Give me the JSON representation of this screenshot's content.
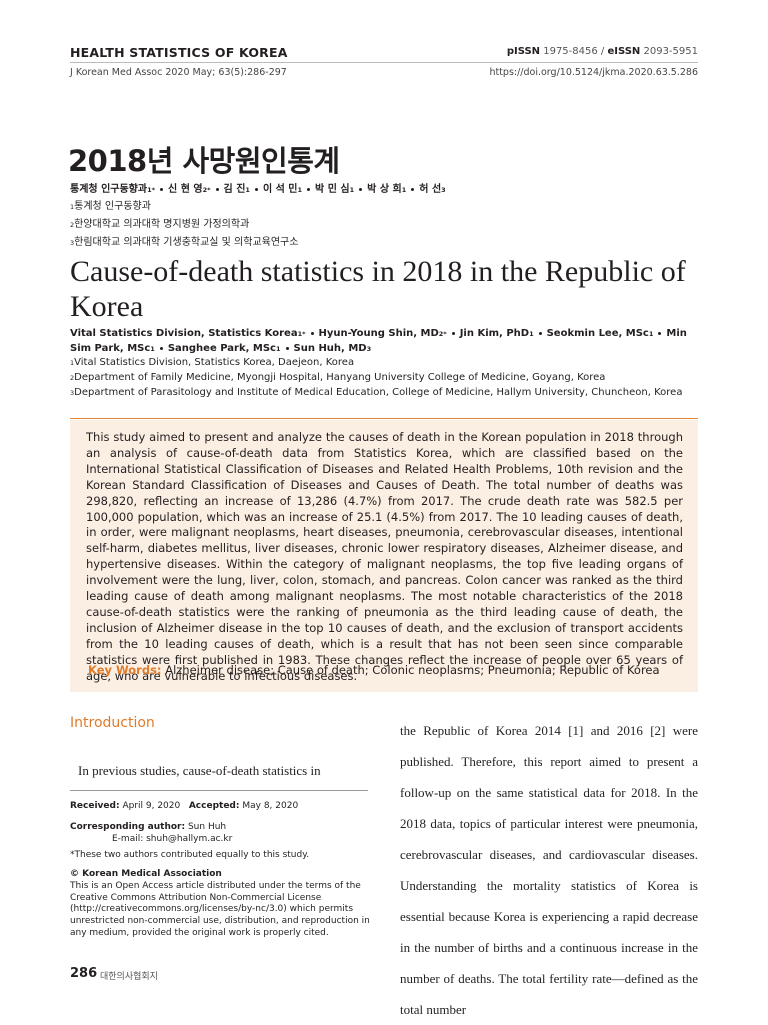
{
  "header": {
    "journal": "HEALTH STATISTICS OF KOREA",
    "citation": "J Korean Med Assoc 2020 May; 63(5):286-297",
    "pissn_label": "pISSN",
    "pissn": "1975-8456 /",
    "eissn_label": "eISSN",
    "eissn": "2093-5951",
    "doi": "https://doi.org/10.5124/jkma.2020.63.5.286"
  },
  "korean_title": "2018년 사망원인통계",
  "korean_authors": [
    {
      "name": "통계청 인구동향과",
      "sup": "1*"
    },
    {
      "name": "신 현 영",
      "sup": "2*"
    },
    {
      "name": "김 진",
      "sup": "1"
    },
    {
      "name": "이 석 민",
      "sup": "1"
    },
    {
      "name": "박 민 심",
      "sup": "1"
    },
    {
      "name": "박 상 희",
      "sup": "1"
    },
    {
      "name": "허 선",
      "sup": "3"
    }
  ],
  "korean_affiliations": [
    {
      "sup": "1",
      "text": "통계청 인구동향과"
    },
    {
      "sup": "2",
      "text": "한양대학교 의과대학 명지병원 가정의학과"
    },
    {
      "sup": "3",
      "text": "한림대학교 의과대학 기생충학교실 및 의학교육연구소"
    }
  ],
  "title": "Cause-of-death statistics in 2018 in the Republic of Korea",
  "authors": [
    {
      "name": "Vital Statistics Division, Statistics Korea",
      "sup": "1*"
    },
    {
      "name": "Hyun-Young Shin, MD",
      "sup": "2*"
    },
    {
      "name": "Jin Kim, PhD",
      "sup": "1"
    },
    {
      "name": "Seokmin Lee, MSc",
      "sup": "1"
    },
    {
      "name": "Min Sim Park, MSc",
      "sup": "1"
    },
    {
      "name": "Sanghee Park, MSc",
      "sup": "1"
    },
    {
      "name": "Sun Huh, MD",
      "sup": "3"
    }
  ],
  "affiliations": [
    {
      "sup": "1",
      "text": "Vital Statistics Division, Statistics Korea, Daejeon, Korea"
    },
    {
      "sup": "2",
      "text": "Department of Family Medicine, Myongji Hospital, Hanyang University College of Medicine, Goyang, Korea"
    },
    {
      "sup": "3",
      "text": "Department of Parasitology and Institute of Medical Education, College of Medicine, Hallym University, Chuncheon, Korea"
    }
  ],
  "abstract": "This study aimed to present and analyze the causes of death in the Korean population in 2018 through an analysis of cause-of-death data from Statistics Korea, which are classified based on the International Statistical Classification of Diseases and Related Health Problems, 10th revision and the Korean Standard Classification of Diseases and Causes of Death. The total number of deaths was 298,820, reflecting an increase of 13,286 (4.7%) from 2017. The crude death rate was 582.5 per 100,000 population, which was an increase of 25.1 (4.5%) from 2017. The 10 leading causes of death, in order, were malignant neoplasms, heart diseases, pneumonia, cerebrovascular diseases, intentional self-harm, diabetes mellitus, liver diseases, chronic lower respiratory diseases, Alzheimer disease, and hypertensive diseases. Within the category of malignant neoplasms, the top five leading organs of involvement were the lung, liver, colon, stomach, and pancreas. Colon cancer was ranked as the third leading cause of death among malignant neoplasms. The most notable characteristics of the 2018 cause-of-death statistics were the ranking of pneumonia as the third leading cause of death, the inclusion of Alzheimer disease in the top 10 causes of death, and the exclusion of transport accidents from the 10 leading causes of death, which is a result that has not been seen since comparable statistics were first published in 1983. These changes reflect the increase of people over 65 years of age, who are vulnerable to infectious diseases.",
  "keywords": {
    "label": "Key Words:",
    "text": "Alzheimer disease; Cause of death; Colonic neoplasms; Pneumonia; Republic of Korea"
  },
  "introduction": {
    "heading": "Introduction",
    "left_text": "In previous studies, cause-of-death statistics in",
    "right_text": "the Republic of Korea 2014 [1] and 2016 [2] were published. Therefore, this report aimed to present a follow-up on the same statistical data for 2018. In the 2018 data, topics of particular interest were pneumonia, cerebrovascular diseases, and cardiovascular diseases. Understanding the mortality statistics of Korea is essential because Korea is experiencing a rapid decrease in the number of births and a continuous increase in the number of deaths. The total fertility rate—defined as the total number"
  },
  "footnotes": {
    "received_label": "Received:",
    "received": "April 9, 2020",
    "accepted_label": "Accepted:",
    "accepted": "May 8, 2020",
    "corresponding_label": "Corresponding author:",
    "corresponding": "Sun Huh",
    "email": "E-mail: shuh@hallym.ac.kr",
    "equal": "*These two authors contributed equally to this study.",
    "copyright": "© Korean Medical Association",
    "license": "This is an Open Access article distributed under the terms of the Creative Commons Attribution Non-Commercial License (http://creativecommons.org/licenses/by-nc/3.0) which permits unrestricted non-commercial use, distribution, and reproduction in any medium, provided the original work is properly cited."
  },
  "footer": {
    "page": "286",
    "journal": "대한의사협회지"
  }
}
